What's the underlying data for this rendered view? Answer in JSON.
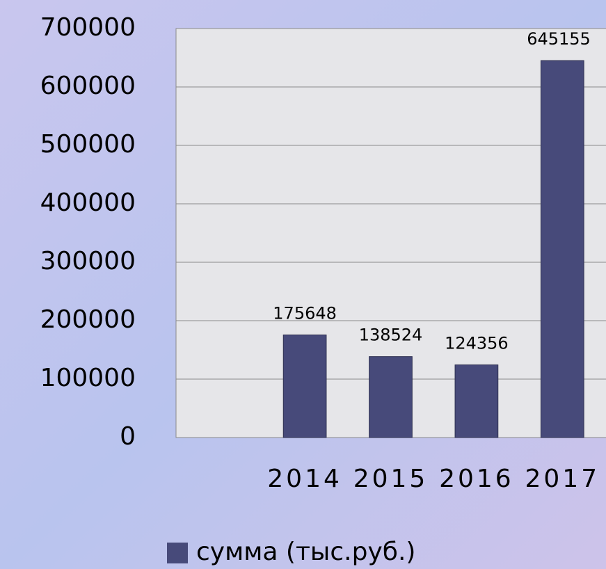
{
  "chart_data": {
    "type": "bar",
    "categories": [
      null,
      "2014",
      "2015",
      "2016",
      "2017"
    ],
    "series": [
      {
        "name": "сумма (тыс.руб.)",
        "color": "#474a7a",
        "values": [
          null,
          175648,
          138524,
          124356,
          645155
        ]
      }
    ],
    "ylim": [
      0,
      700000
    ],
    "yticks": [
      0,
      100000,
      200000,
      300000,
      400000,
      500000,
      600000,
      700000
    ],
    "grid": true
  }
}
